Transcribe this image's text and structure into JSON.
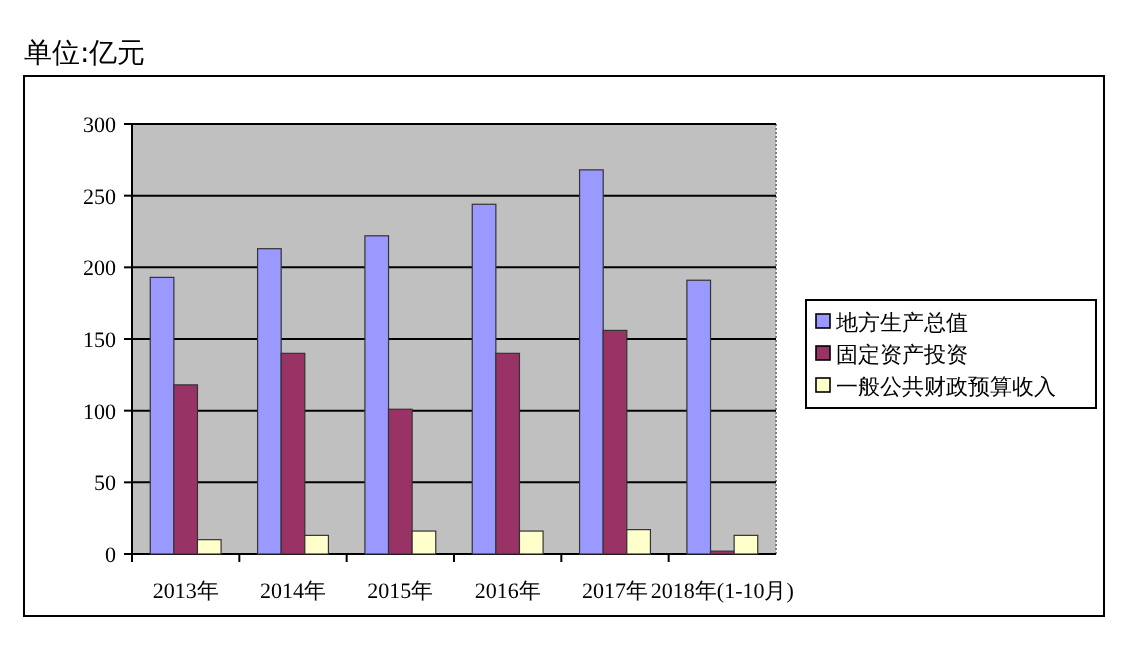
{
  "chart_data": {
    "type": "bar",
    "ylabel": "单位:亿元",
    "categories": [
      "2013年",
      "2014年",
      "2015年",
      "2016年",
      "2017年",
      "2018年(1-10月)"
    ],
    "series": [
      {
        "name": "地方生产总值",
        "color": "#9999ff",
        "values": [
          193,
          213,
          222,
          244,
          268,
          191
        ]
      },
      {
        "name": "固定资产投资",
        "color": "#993366",
        "values": [
          118,
          140,
          101,
          140,
          156,
          2
        ]
      },
      {
        "name": "一般公共财政预算收入",
        "color": "#ffffcc",
        "values": [
          10,
          13,
          16,
          16,
          17,
          13
        ]
      }
    ],
    "ylim": [
      0,
      300
    ],
    "yticks": [
      0,
      50,
      100,
      150,
      200,
      250,
      300
    ],
    "grid": "y",
    "legend": "right"
  }
}
